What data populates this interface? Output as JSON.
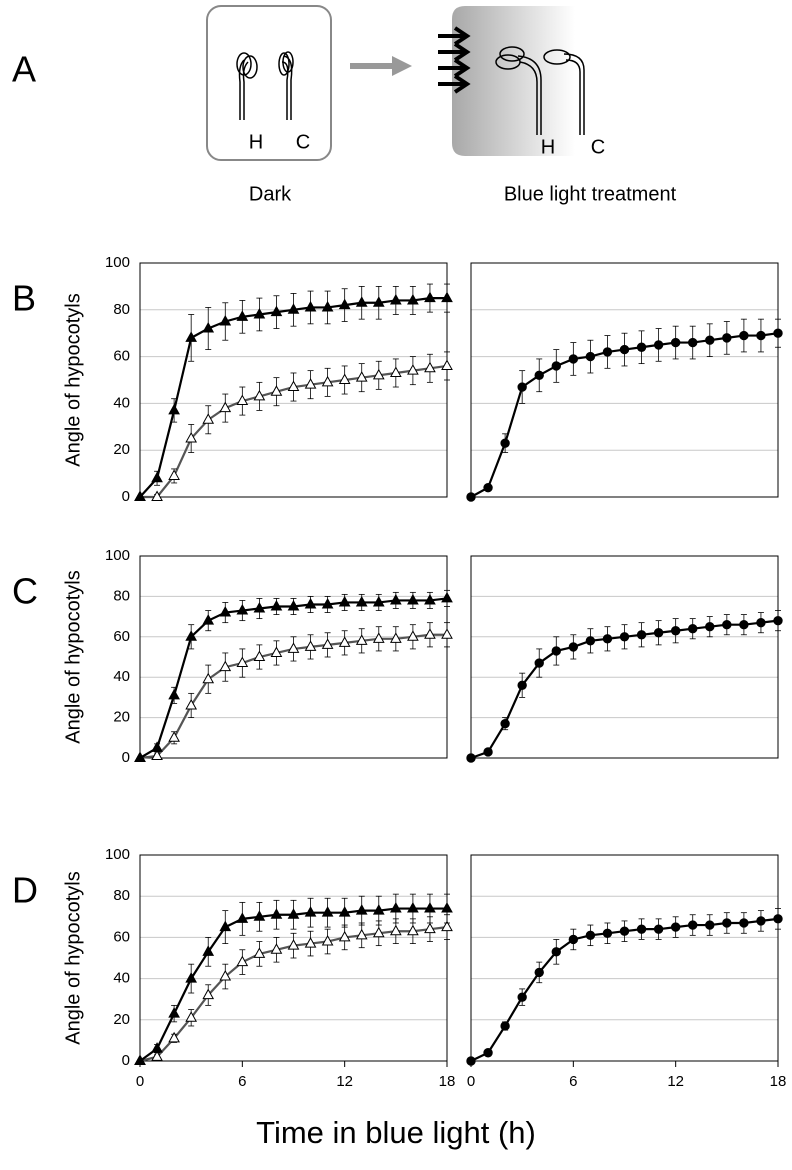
{
  "diagram": {
    "label": "A",
    "dark_h": "H",
    "dark_c": "C",
    "dark_caption": "Dark",
    "light_h": "H",
    "light_c": "C",
    "light_caption": "Blue light treatment"
  },
  "xlabel": "Time in blue light (h)",
  "chart_data": [
    {
      "type": "line",
      "panel": "B",
      "ylabel": "Angle of hypocotyls",
      "x": [
        0,
        1,
        2,
        3,
        4,
        5,
        6,
        7,
        8,
        9,
        10,
        11,
        12,
        13,
        14,
        15,
        16,
        17,
        18
      ],
      "xlim": [
        0,
        18
      ],
      "ylim": [
        0,
        100
      ],
      "yticks": [
        0,
        20,
        40,
        60,
        80,
        100
      ],
      "grid": true,
      "series": [
        {
          "color": "#555555",
          "marker": "triangle",
          "marker_fill": "#ffffff",
          "values": [
            0,
            0,
            9,
            25,
            33,
            38,
            41,
            43,
            45,
            47,
            48,
            49,
            50,
            51,
            52,
            53,
            54,
            55,
            56
          ],
          "errors": [
            0,
            1,
            3,
            6,
            6,
            6,
            6,
            6,
            6,
            6,
            6,
            6,
            6,
            6,
            6,
            6,
            6,
            6,
            6
          ]
        },
        {
          "color": "#000000",
          "marker": "triangle",
          "marker_fill": "#000000",
          "values": [
            0,
            8,
            37,
            68,
            72,
            75,
            77,
            78,
            79,
            80,
            81,
            81,
            82,
            83,
            83,
            84,
            84,
            85,
            85
          ],
          "errors": [
            0,
            3,
            5,
            10,
            9,
            8,
            7,
            7,
            7,
            7,
            7,
            7,
            7,
            7,
            7,
            6,
            6,
            6,
            6
          ]
        }
      ]
    },
    {
      "type": "line",
      "x": [
        0,
        1,
        2,
        3,
        4,
        5,
        6,
        7,
        8,
        9,
        10,
        11,
        12,
        13,
        14,
        15,
        16,
        17,
        18
      ],
      "xlim": [
        0,
        18
      ],
      "ylim": [
        0,
        100
      ],
      "yticks": [
        0,
        20,
        40,
        60,
        80,
        100
      ],
      "ytick_labels": false,
      "grid": true,
      "series": [
        {
          "color": "#000000",
          "marker": "circle",
          "marker_fill": "#000000",
          "values": [
            0,
            4,
            23,
            47,
            52,
            56,
            59,
            60,
            62,
            63,
            64,
            65,
            66,
            66,
            67,
            68,
            69,
            69,
            70
          ],
          "errors": [
            0,
            1,
            4,
            7,
            7,
            7,
            7,
            7,
            7,
            7,
            7,
            7,
            7,
            7,
            7,
            7,
            7,
            7,
            6
          ]
        }
      ]
    },
    {
      "type": "line",
      "panel": "C",
      "ylabel": "Angle of hypocotyls",
      "x": [
        0,
        1,
        2,
        3,
        4,
        5,
        6,
        7,
        8,
        9,
        10,
        11,
        12,
        13,
        14,
        15,
        16,
        17,
        18
      ],
      "xlim": [
        0,
        18
      ],
      "ylim": [
        0,
        100
      ],
      "yticks": [
        0,
        20,
        40,
        60,
        80,
        100
      ],
      "grid": true,
      "series": [
        {
          "color": "#555555",
          "marker": "triangle",
          "marker_fill": "#ffffff",
          "values": [
            0,
            1,
            10,
            26,
            39,
            45,
            47,
            50,
            52,
            54,
            55,
            56,
            57,
            58,
            59,
            59,
            60,
            61,
            61
          ],
          "errors": [
            0,
            1,
            3,
            6,
            7,
            7,
            7,
            6,
            6,
            6,
            6,
            6,
            6,
            6,
            6,
            6,
            6,
            6,
            6
          ]
        },
        {
          "color": "#000000",
          "marker": "triangle",
          "marker_fill": "#000000",
          "values": [
            0,
            5,
            31,
            60,
            68,
            72,
            73,
            74,
            75,
            75,
            76,
            76,
            77,
            77,
            77,
            78,
            78,
            78,
            79
          ],
          "errors": [
            0,
            2,
            4,
            6,
            5,
            5,
            5,
            5,
            4,
            4,
            4,
            4,
            4,
            4,
            4,
            4,
            4,
            4,
            4
          ]
        }
      ]
    },
    {
      "type": "line",
      "x": [
        0,
        1,
        2,
        3,
        4,
        5,
        6,
        7,
        8,
        9,
        10,
        11,
        12,
        13,
        14,
        15,
        16,
        17,
        18
      ],
      "xlim": [
        0,
        18
      ],
      "ylim": [
        0,
        100
      ],
      "yticks": [
        0,
        20,
        40,
        60,
        80,
        100
      ],
      "ytick_labels": false,
      "grid": true,
      "series": [
        {
          "color": "#000000",
          "marker": "circle",
          "marker_fill": "#000000",
          "values": [
            0,
            3,
            17,
            36,
            47,
            53,
            55,
            58,
            59,
            60,
            61,
            62,
            63,
            64,
            65,
            66,
            66,
            67,
            68
          ],
          "errors": [
            0,
            1,
            3,
            6,
            7,
            7,
            6,
            6,
            6,
            6,
            6,
            6,
            6,
            5,
            5,
            5,
            5,
            5,
            5
          ]
        }
      ]
    },
    {
      "type": "line",
      "panel": "D",
      "ylabel": "Angle of hypocotyls",
      "x": [
        0,
        1,
        2,
        3,
        4,
        5,
        6,
        7,
        8,
        9,
        10,
        11,
        12,
        13,
        14,
        15,
        16,
        17,
        18
      ],
      "xlim": [
        0,
        18
      ],
      "ylim": [
        0,
        100
      ],
      "xticks": [
        0,
        6,
        12,
        18
      ],
      "yticks": [
        0,
        20,
        40,
        60,
        80,
        100
      ],
      "grid": true,
      "series": [
        {
          "color": "#555555",
          "marker": "triangle",
          "marker_fill": "#ffffff",
          "values": [
            0,
            2,
            11,
            21,
            32,
            41,
            48,
            52,
            54,
            56,
            57,
            58,
            60,
            61,
            62,
            63,
            63,
            64,
            65
          ],
          "errors": [
            0,
            1,
            2,
            4,
            5,
            6,
            6,
            6,
            6,
            6,
            6,
            6,
            6,
            6,
            6,
            6,
            6,
            6,
            6
          ]
        },
        {
          "color": "#000000",
          "marker": "triangle",
          "marker_fill": "#000000",
          "values": [
            0,
            6,
            23,
            40,
            53,
            65,
            69,
            70,
            71,
            71,
            72,
            72,
            72,
            73,
            73,
            74,
            74,
            74,
            74
          ],
          "errors": [
            0,
            2,
            4,
            7,
            7,
            8,
            8,
            7,
            7,
            7,
            7,
            7,
            7,
            7,
            7,
            7,
            7,
            7,
            7
          ]
        }
      ]
    },
    {
      "type": "line",
      "x": [
        0,
        1,
        2,
        3,
        4,
        5,
        6,
        7,
        8,
        9,
        10,
        11,
        12,
        13,
        14,
        15,
        16,
        17,
        18
      ],
      "xlim": [
        0,
        18
      ],
      "ylim": [
        0,
        100
      ],
      "xticks": [
        0,
        6,
        12,
        18
      ],
      "yticks": [
        0,
        20,
        40,
        60,
        80,
        100
      ],
      "ytick_labels": false,
      "grid": true,
      "series": [
        {
          "color": "#000000",
          "marker": "circle",
          "marker_fill": "#000000",
          "values": [
            0,
            4,
            17,
            31,
            43,
            53,
            59,
            61,
            62,
            63,
            64,
            64,
            65,
            66,
            66,
            67,
            67,
            68,
            69
          ],
          "errors": [
            0,
            1,
            2,
            4,
            5,
            6,
            5,
            5,
            5,
            5,
            5,
            5,
            5,
            5,
            5,
            5,
            5,
            5,
            5
          ]
        }
      ]
    }
  ]
}
